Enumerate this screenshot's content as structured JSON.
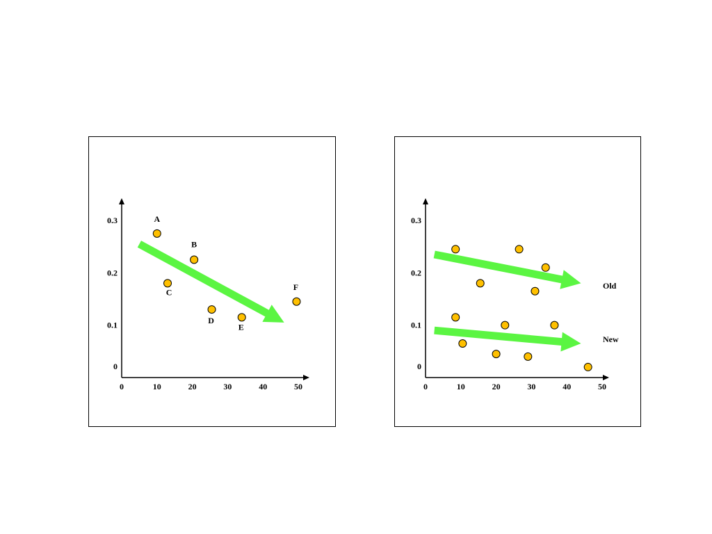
{
  "colors": {
    "point_fill": "#FFC000",
    "point_stroke": "#000000",
    "trend_arrow": "#5BF542",
    "axis": "#000000"
  },
  "chart_data": [
    {
      "type": "scatter",
      "xlim": [
        0,
        50
      ],
      "ylim": [
        0,
        0.3
      ],
      "x_ticks": [
        "0",
        "10",
        "20",
        "30",
        "40",
        "50"
      ],
      "y_ticks": [
        "0",
        "0.1",
        "0.2",
        "0.3"
      ],
      "points": [
        {
          "label": "A",
          "x": 10,
          "y": 0.275
        },
        {
          "label": "B",
          "x": 20.5,
          "y": 0.225
        },
        {
          "label": "C",
          "x": 13,
          "y": 0.18
        },
        {
          "label": "D",
          "x": 25.5,
          "y": 0.13
        },
        {
          "label": "E",
          "x": 34,
          "y": 0.115
        },
        {
          "label": "F",
          "x": 49.5,
          "y": 0.145
        }
      ],
      "trend_arrows": [
        {
          "label": "",
          "start": [
            5,
            0.255
          ],
          "end": [
            46,
            0.105
          ]
        }
      ],
      "grid": false
    },
    {
      "type": "scatter",
      "xlim": [
        0,
        50
      ],
      "ylim": [
        0,
        0.3
      ],
      "x_ticks": [
        "0",
        "10",
        "20",
        "30",
        "40",
        "50"
      ],
      "y_ticks": [
        "0",
        "0.1",
        "0.2",
        "0.3"
      ],
      "points": [
        {
          "label": "",
          "x": 8.5,
          "y": 0.245
        },
        {
          "label": "",
          "x": 26.5,
          "y": 0.245
        },
        {
          "label": "",
          "x": 34,
          "y": 0.21
        },
        {
          "label": "",
          "x": 15.5,
          "y": 0.18
        },
        {
          "label": "",
          "x": 31,
          "y": 0.165
        },
        {
          "label": "",
          "x": 8.5,
          "y": 0.115
        },
        {
          "label": "",
          "x": 22.5,
          "y": 0.1
        },
        {
          "label": "",
          "x": 36.5,
          "y": 0.1
        },
        {
          "label": "",
          "x": 10.5,
          "y": 0.065
        },
        {
          "label": "",
          "x": 20,
          "y": 0.045
        },
        {
          "label": "",
          "x": 29,
          "y": 0.04
        },
        {
          "label": "",
          "x": 46,
          "y": 0.02
        }
      ],
      "trend_arrows": [
        {
          "label": "Old",
          "start": [
            2.5,
            0.235
          ],
          "end": [
            44,
            0.18
          ]
        },
        {
          "label": "New",
          "start": [
            2.5,
            0.09
          ],
          "end": [
            44,
            0.065
          ]
        }
      ],
      "grid": false
    }
  ]
}
